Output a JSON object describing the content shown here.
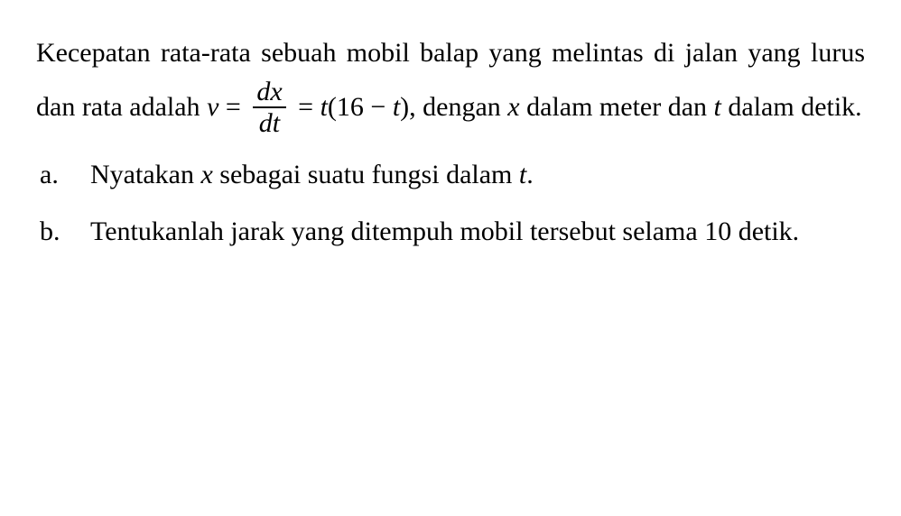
{
  "text": {
    "intro_part1": "Kecepatan rata-rata sebuah mobil balap yang melintas di jalan yang lurus dan rata adalah ",
    "intro_v": "v",
    "intro_equals1": " = ",
    "frac_num": "dx",
    "frac_den": "dt",
    "intro_equals2": " = ",
    "intro_t": "t",
    "intro_expr": "(16 − ",
    "intro_t2": "t",
    "intro_expr2": "), dengan ",
    "intro_x": "x",
    "intro_part2": " dalam meter dan ",
    "intro_t3": "t",
    "intro_part3": " dalam detik."
  },
  "items": {
    "a": {
      "marker": "a.",
      "text1": "Nyatakan ",
      "x": "x",
      "text2": " sebagai suatu fungsi dalam ",
      "t": "t",
      "text3": "."
    },
    "b": {
      "marker": "b.",
      "text": "Tentukanlah jarak yang ditempuh mobil tersebut selama 10 detik."
    }
  },
  "style": {
    "background_color": "#ffffff",
    "text_color": "#000000",
    "font_family": "Times New Roman",
    "font_size_pt": 22,
    "line_height": 1.9,
    "text_align": "justify"
  }
}
